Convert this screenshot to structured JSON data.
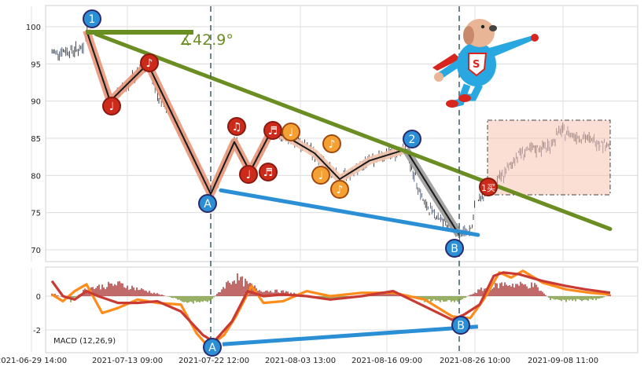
{
  "chart_data": [
    {
      "panel": "price",
      "type": "candlestick",
      "ylim": [
        68,
        103
      ],
      "yticks": [
        70,
        75,
        80,
        85,
        90,
        95,
        100
      ],
      "grid": true,
      "trend_lines": [
        {
          "color": "#6b8e23",
          "points": [
            [
              "2021-07-05",
              99
            ],
            [
              "2021-09-13",
              72.8
            ]
          ]
        },
        {
          "color": "#2b8fd6",
          "points": [
            [
              "2021-07-22",
              78
            ],
            [
              "2021-08-26",
              72
            ]
          ]
        }
      ],
      "angle_label": "∡42.9°",
      "wave_labels": [
        {
          "text": "1",
          "x": "2021-07-05",
          "y": 100.3,
          "style": "blue"
        },
        {
          "text": "2",
          "x": "2021-08-23",
          "y": 84.9,
          "style": "blue"
        },
        {
          "text": "A",
          "x": "2021-07-22",
          "y": 76.2,
          "style": "blue"
        },
        {
          "text": "B",
          "x": "2021-08-26",
          "y": 70.2,
          "style": "blue"
        },
        {
          "text": "♩",
          "x": "2021-07-07",
          "y": 89.4,
          "style": "red"
        },
        {
          "text": "♪",
          "x": "2021-07-12",
          "y": 95.1,
          "style": "red"
        },
        {
          "text": "♫",
          "x": "2021-07-24",
          "y": 86.5,
          "style": "red"
        },
        {
          "text": "♩",
          "x": "2021-07-27",
          "y": 80.2,
          "style": "red"
        },
        {
          "text": "♬",
          "x": "2021-07-30",
          "y": 80.3,
          "style": "red"
        },
        {
          "text": "♬",
          "x": "2021-07-30",
          "y": 86.2,
          "style": "red"
        },
        {
          "text": "♩",
          "x": "2021-08-01",
          "y": 86.1,
          "style": "orange"
        },
        {
          "text": "♪",
          "x": "2021-08-10",
          "y": 83.7,
          "style": "orange"
        },
        {
          "text": "♩",
          "x": "2021-08-09",
          "y": 80.0,
          "style": "orange"
        },
        {
          "text": "♪",
          "x": "2021-08-11",
          "y": 78.3,
          "style": "orange"
        },
        {
          "text": "1买",
          "x": "2021-08-31",
          "y": 77.5,
          "style": "red"
        }
      ]
    },
    {
      "panel": "macd",
      "type": "line",
      "label": "MACD (12,26,9)",
      "ylim": [
        -3,
        1.6
      ],
      "yticks": [
        -2,
        0
      ],
      "series_colors": [
        "#ff8c1a",
        "#c93a33"
      ],
      "divergence_line": {
        "color": "#2b8fd6",
        "points": [
          [
            "2021-07-22",
            -2.85
          ],
          [
            "2021-08-26",
            -1.8
          ]
        ]
      },
      "wave_labels": [
        {
          "text": "A",
          "x": "2021-07-22",
          "y": -2.85
        },
        {
          "text": "B",
          "x": "2021-08-26",
          "y": -1.8
        }
      ]
    }
  ],
  "x_ticks": [
    "2021-06-29 14:00",
    "2021-07-13 09:00",
    "2021-07-22 12:00",
    "2021-08-03 13:00",
    "2021-08-16 09:00",
    "2021-08-26 10:00",
    "2021-09-08 11:00"
  ],
  "colors": {
    "up": "#2e2e2e",
    "down": "#4a5a75",
    "macd_pos": "#a52a2a",
    "macd_neg": "#6b8e23"
  }
}
